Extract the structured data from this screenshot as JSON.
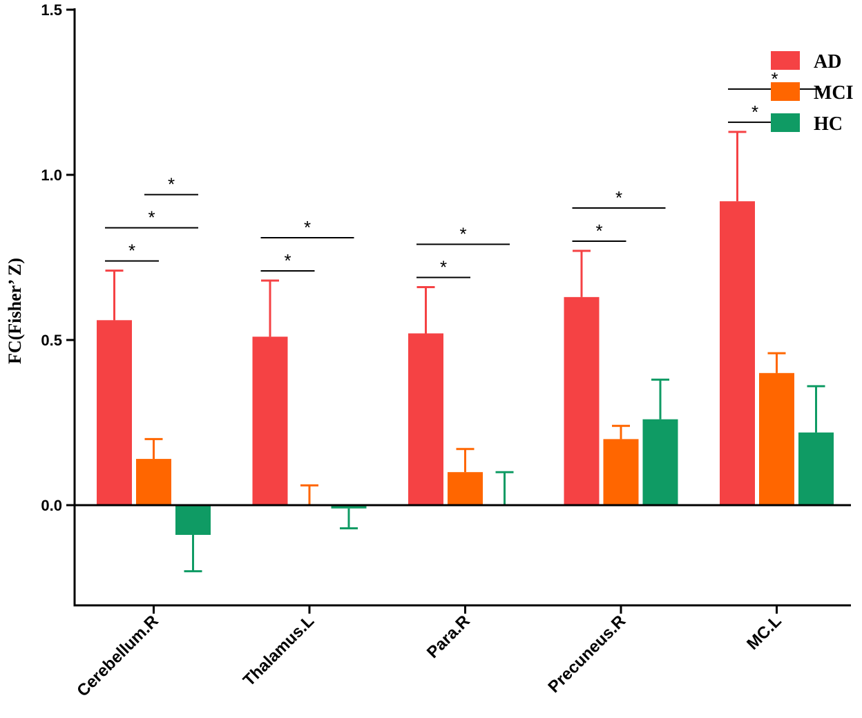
{
  "chart_data": {
    "type": "bar",
    "title": "",
    "xlabel": "",
    "ylabel": "FC(Fisher’ Z)",
    "ylim": [
      -0.3,
      1.5
    ],
    "yticks": [
      0.0,
      0.5,
      1.0,
      1.5
    ],
    "ytick_labels": [
      "0.0",
      "0.5",
      "1.0",
      "1.5"
    ],
    "categories": [
      "Cerebellum.R",
      "Thalamus.L",
      "Para.R",
      "Precuneus.R",
      "MC.L"
    ],
    "series": [
      {
        "name": "AD",
        "color": "#f54244",
        "values": [
          0.56,
          0.51,
          0.52,
          0.63,
          0.92
        ],
        "errors": [
          0.15,
          0.17,
          0.14,
          0.14,
          0.21
        ]
      },
      {
        "name": "MCI",
        "color": "#ff6600",
        "values": [
          0.14,
          0.0,
          0.1,
          0.2,
          0.4
        ],
        "errors": [
          0.06,
          0.06,
          0.07,
          0.04,
          0.06
        ]
      },
      {
        "name": "HC",
        "color": "#0f9b64",
        "values": [
          -0.09,
          -0.01,
          0.0,
          0.26,
          0.22
        ],
        "errors": [
          0.11,
          0.06,
          0.1,
          0.12,
          0.14
        ]
      }
    ],
    "legend_position": "top-right",
    "significance": [
      {
        "category": 0,
        "from": 0,
        "to": 1,
        "label": "*"
      },
      {
        "category": 0,
        "from": 0,
        "to": 2,
        "label": "*"
      },
      {
        "category": 0,
        "from": 1,
        "to": 2,
        "label": "*"
      },
      {
        "category": 1,
        "from": 0,
        "to": 1,
        "label": "*"
      },
      {
        "category": 1,
        "from": 0,
        "to": 2,
        "label": "*"
      },
      {
        "category": 2,
        "from": 0,
        "to": 1,
        "label": "*"
      },
      {
        "category": 2,
        "from": 0,
        "to": 2,
        "label": "*"
      },
      {
        "category": 3,
        "from": 0,
        "to": 1,
        "label": "*"
      },
      {
        "category": 3,
        "from": 0,
        "to": 2,
        "label": "*"
      },
      {
        "category": 4,
        "from": 0,
        "to": 1,
        "label": "*"
      },
      {
        "category": 4,
        "from": 0,
        "to": 2,
        "label": "*"
      }
    ]
  }
}
